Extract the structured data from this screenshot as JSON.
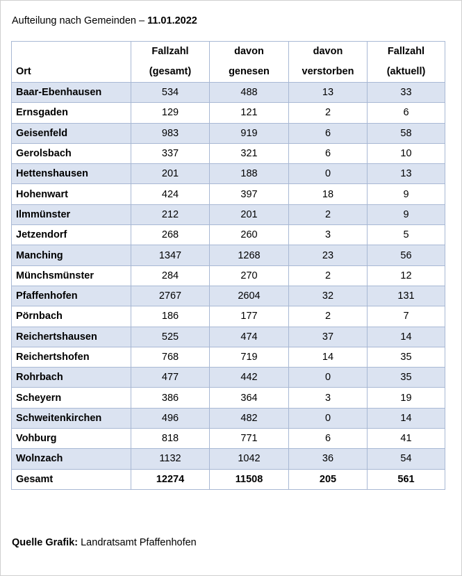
{
  "heading": {
    "prefix": "Aufteilung nach Gemeinden – ",
    "date": "11.01.2022"
  },
  "table": {
    "headers": [
      {
        "line1": "",
        "line2": "Ort"
      },
      {
        "line1": "Fallzahl",
        "line2": "(gesamt)"
      },
      {
        "line1": "davon",
        "line2": "genesen"
      },
      {
        "line1": "davon",
        "line2": "verstorben"
      },
      {
        "line1": "Fallzahl",
        "line2": "(aktuell)"
      }
    ],
    "rows": [
      [
        "Baar-Ebenhausen",
        "534",
        "488",
        "13",
        "33"
      ],
      [
        "Ernsgaden",
        "129",
        "121",
        "2",
        "6"
      ],
      [
        "Geisenfeld",
        "983",
        "919",
        "6",
        "58"
      ],
      [
        "Gerolsbach",
        "337",
        "321",
        "6",
        "10"
      ],
      [
        "Hettenshausen",
        "201",
        "188",
        "0",
        "13"
      ],
      [
        "Hohenwart",
        "424",
        "397",
        "18",
        "9"
      ],
      [
        "Ilmmünster",
        "212",
        "201",
        "2",
        "9"
      ],
      [
        "Jetzendorf",
        "268",
        "260",
        "3",
        "5"
      ],
      [
        "Manching",
        "1347",
        "1268",
        "23",
        "56"
      ],
      [
        "Münchsmünster",
        "284",
        "270",
        "2",
        "12"
      ],
      [
        "Pfaffenhofen",
        "2767",
        "2604",
        "32",
        "131"
      ],
      [
        "Pörnbach",
        "186",
        "177",
        "2",
        "7"
      ],
      [
        "Reichertshausen",
        "525",
        "474",
        "37",
        "14"
      ],
      [
        "Reichertshofen",
        "768",
        "719",
        "14",
        "35"
      ],
      [
        "Rohrbach",
        "477",
        "442",
        "0",
        "35"
      ],
      [
        "Scheyern",
        "386",
        "364",
        "3",
        "19"
      ],
      [
        "Schweitenkirchen",
        "496",
        "482",
        "0",
        "14"
      ],
      [
        "Vohburg",
        "818",
        "771",
        "6",
        "41"
      ],
      [
        "Wolnzach",
        "1132",
        "1042",
        "36",
        "54"
      ]
    ],
    "total": [
      "Gesamt",
      "12274",
      "11508",
      "205",
      "561"
    ]
  },
  "source": {
    "label": "Quelle Grafik:",
    "text": " Landratsamt Pfaffenhofen"
  },
  "colors": {
    "row_shade": "#dbe3f1",
    "border": "#a8b8d4"
  }
}
